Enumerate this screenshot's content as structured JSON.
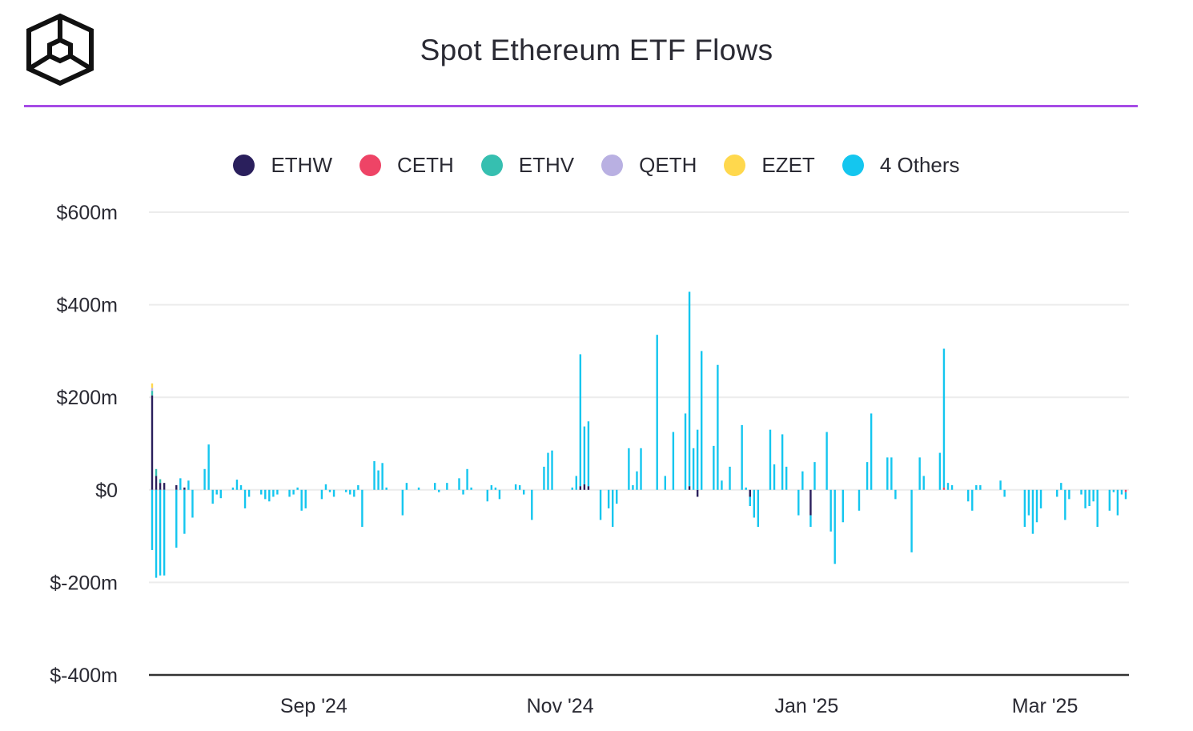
{
  "title": "Spot Ethereum ETF Flows",
  "legend": [
    {
      "name": "ETHW",
      "color": "#2a1f5c"
    },
    {
      "name": "CETH",
      "color": "#ee4466"
    },
    {
      "name": "ETHV",
      "color": "#36bfb0"
    },
    {
      "name": "QETH",
      "color": "#b9b0e2"
    },
    {
      "name": "EZET",
      "color": "#ffd84d"
    },
    {
      "name": "4 Others",
      "color": "#14c6ef"
    }
  ],
  "chart_data": {
    "type": "bar",
    "stacked": true,
    "title": "Spot Ethereum ETF Flows",
    "ylabel": "",
    "xlabel": "",
    "ylim": [
      -400,
      600
    ],
    "y_ticks": [
      "$600m",
      "$400m",
      "$200m",
      "$0",
      "$-200m",
      "$-400m"
    ],
    "y_tick_values": [
      600,
      400,
      200,
      0,
      -200,
      -400
    ],
    "x_ticks": [
      "Sep '24",
      "Nov '24",
      "Jan '25",
      "Mar '25"
    ],
    "x_tick_dates": [
      "2024-09-01",
      "2024-11-01",
      "2025-01-01",
      "2025-03-01"
    ],
    "x_range": [
      "2024-07-23",
      "2025-03-21"
    ],
    "legend_position": "top-center",
    "grid": true,
    "unit": "$m",
    "series_names": [
      "ETHW",
      "CETH",
      "ETHV",
      "QETH",
      "EZET",
      "4 Others"
    ],
    "bars": [
      {
        "date": "2024-07-23",
        "ETHW": 204,
        "ETHV": 10,
        "QETH": 6,
        "EZET": 10,
        "4 Others": -130
      },
      {
        "date": "2024-07-24",
        "ETHW": 30,
        "ETHV": 15,
        "4 Others": -190
      },
      {
        "date": "2024-07-25",
        "ETHW": 15,
        "ETHV": 8,
        "4 Others": -185
      },
      {
        "date": "2024-07-26",
        "ETHW": 15,
        "4 Others": -185
      },
      {
        "date": "2024-07-29",
        "ETHW": 10,
        "4 Others": -125
      },
      {
        "date": "2024-07-30",
        "4 Others": 25
      },
      {
        "date": "2024-07-31",
        "ETHW": 5,
        "4 Others": -95
      },
      {
        "date": "2024-08-01",
        "4 Others": 20
      },
      {
        "date": "2024-08-02",
        "4 Others": -60
      },
      {
        "date": "2024-08-05",
        "4 Others": 45
      },
      {
        "date": "2024-08-06",
        "4 Others": 98
      },
      {
        "date": "2024-08-07",
        "4 Others": -30
      },
      {
        "date": "2024-08-08",
        "4 Others": -10
      },
      {
        "date": "2024-08-09",
        "4 Others": -18
      },
      {
        "date": "2024-08-12",
        "4 Others": 5
      },
      {
        "date": "2024-08-13",
        "4 Others": 22
      },
      {
        "date": "2024-08-14",
        "4 Others": 10
      },
      {
        "date": "2024-08-15",
        "4 Others": -40
      },
      {
        "date": "2024-08-16",
        "4 Others": -15
      },
      {
        "date": "2024-08-19",
        "4 Others": -10
      },
      {
        "date": "2024-08-20",
        "4 Others": -20
      },
      {
        "date": "2024-08-21",
        "4 Others": -25
      },
      {
        "date": "2024-08-22",
        "4 Others": -15
      },
      {
        "date": "2024-08-23",
        "4 Others": -10
      },
      {
        "date": "2024-08-26",
        "4 Others": -15
      },
      {
        "date": "2024-08-27",
        "4 Others": -10
      },
      {
        "date": "2024-08-28",
        "4 Others": 5
      },
      {
        "date": "2024-08-29",
        "4 Others": -45
      },
      {
        "date": "2024-08-30",
        "4 Others": -40
      },
      {
        "date": "2024-09-03",
        "4 Others": -20
      },
      {
        "date": "2024-09-04",
        "4 Others": 12
      },
      {
        "date": "2024-09-05",
        "4 Others": -5
      },
      {
        "date": "2024-09-06",
        "4 Others": -15
      },
      {
        "date": "2024-09-09",
        "4 Others": -5
      },
      {
        "date": "2024-09-10",
        "4 Others": -10
      },
      {
        "date": "2024-09-11",
        "4 Others": -15
      },
      {
        "date": "2024-09-12",
        "4 Others": 10
      },
      {
        "date": "2024-09-13",
        "4 Others": -80
      },
      {
        "date": "2024-09-16",
        "4 Others": 62
      },
      {
        "date": "2024-09-17",
        "4 Others": 42
      },
      {
        "date": "2024-09-18",
        "4 Others": 58
      },
      {
        "date": "2024-09-19",
        "4 Others": 5
      },
      {
        "date": "2024-09-23",
        "4 Others": -55
      },
      {
        "date": "2024-09-24",
        "4 Others": 15
      },
      {
        "date": "2024-09-27",
        "4 Others": 5
      },
      {
        "date": "2024-10-01",
        "4 Others": 15
      },
      {
        "date": "2024-10-02",
        "4 Others": -5
      },
      {
        "date": "2024-10-04",
        "4 Others": 15
      },
      {
        "date": "2024-10-07",
        "4 Others": 25
      },
      {
        "date": "2024-10-08",
        "4 Others": -10
      },
      {
        "date": "2024-10-09",
        "4 Others": 45
      },
      {
        "date": "2024-10-10",
        "4 Others": 5
      },
      {
        "date": "2024-10-14",
        "4 Others": -25
      },
      {
        "date": "2024-10-15",
        "4 Others": 10
      },
      {
        "date": "2024-10-16",
        "4 Others": 5
      },
      {
        "date": "2024-10-17",
        "4 Others": -20
      },
      {
        "date": "2024-10-21",
        "4 Others": 12
      },
      {
        "date": "2024-10-22",
        "4 Others": 10
      },
      {
        "date": "2024-10-23",
        "4 Others": -10
      },
      {
        "date": "2024-10-25",
        "4 Others": -65
      },
      {
        "date": "2024-10-28",
        "4 Others": 50
      },
      {
        "date": "2024-10-29",
        "4 Others": 80
      },
      {
        "date": "2024-10-30",
        "4 Others": 85
      },
      {
        "date": "2024-11-04",
        "4 Others": 5
      },
      {
        "date": "2024-11-05",
        "4 Others": 30
      },
      {
        "date": "2024-11-06",
        "ETHW": 8,
        "4 Others": 285
      },
      {
        "date": "2024-11-07",
        "ETHW": 12,
        "4 Others": 125
      },
      {
        "date": "2024-11-08",
        "ETHW": 8,
        "4 Others": 140
      },
      {
        "date": "2024-11-11",
        "4 Others": -65
      },
      {
        "date": "2024-11-13",
        "4 Others": -40
      },
      {
        "date": "2024-11-14",
        "4 Others": -80
      },
      {
        "date": "2024-11-15",
        "4 Others": -30
      },
      {
        "date": "2024-11-18",
        "4 Others": 90
      },
      {
        "date": "2024-11-19",
        "4 Others": 10
      },
      {
        "date": "2024-11-20",
        "4 Others": 40
      },
      {
        "date": "2024-11-21",
        "4 Others": 90
      },
      {
        "date": "2024-11-25",
        "4 Others": 335
      },
      {
        "date": "2024-11-27",
        "4 Others": 30
      },
      {
        "date": "2024-11-29",
        "4 Others": 125
      },
      {
        "date": "2024-12-02",
        "4 Others": 165
      },
      {
        "date": "2024-12-03",
        "ETHW": 8,
        "4 Others": 420
      },
      {
        "date": "2024-12-04",
        "4 Others": 90
      },
      {
        "date": "2024-12-05",
        "ETHW": -15,
        "4 Others": 130
      },
      {
        "date": "2024-12-06",
        "4 Others": 300
      },
      {
        "date": "2024-12-09",
        "4 Others": 95
      },
      {
        "date": "2024-12-10",
        "4 Others": 270
      },
      {
        "date": "2024-12-11",
        "4 Others": 20
      },
      {
        "date": "2024-12-13",
        "4 Others": 50
      },
      {
        "date": "2024-12-16",
        "4 Others": 140
      },
      {
        "date": "2024-12-17",
        "4 Others": 5
      },
      {
        "date": "2024-12-18",
        "ETHW": -15,
        "4 Others": -20
      },
      {
        "date": "2024-12-19",
        "4 Others": -60
      },
      {
        "date": "2024-12-20",
        "4 Others": -80
      },
      {
        "date": "2024-12-23",
        "4 Others": 130
      },
      {
        "date": "2024-12-24",
        "4 Others": 55
      },
      {
        "date": "2024-12-26",
        "4 Others": 120
      },
      {
        "date": "2024-12-27",
        "4 Others": 50
      },
      {
        "date": "2024-12-30",
        "4 Others": -55
      },
      {
        "date": "2024-12-31",
        "4 Others": 40
      },
      {
        "date": "2025-01-02",
        "ETHW": -55,
        "4 Others": -25
      },
      {
        "date": "2025-01-03",
        "4 Others": 60
      },
      {
        "date": "2025-01-06",
        "4 Others": 125
      },
      {
        "date": "2025-01-07",
        "4 Others": -90
      },
      {
        "date": "2025-01-08",
        "4 Others": -160
      },
      {
        "date": "2025-01-10",
        "4 Others": -70
      },
      {
        "date": "2025-01-14",
        "4 Others": -45
      },
      {
        "date": "2025-01-16",
        "4 Others": 60
      },
      {
        "date": "2025-01-17",
        "4 Others": 165
      },
      {
        "date": "2025-01-21",
        "4 Others": 70
      },
      {
        "date": "2025-01-22",
        "4 Others": 70
      },
      {
        "date": "2025-01-23",
        "4 Others": -20
      },
      {
        "date": "2025-01-27",
        "4 Others": -135
      },
      {
        "date": "2025-01-29",
        "4 Others": 70
      },
      {
        "date": "2025-01-30",
        "4 Others": 30
      },
      {
        "date": "2025-02-03",
        "4 Others": 80
      },
      {
        "date": "2025-02-04",
        "CETH": 5,
        "4 Others": 300
      },
      {
        "date": "2025-02-05",
        "4 Others": 15
      },
      {
        "date": "2025-02-06",
        "4 Others": 10
      },
      {
        "date": "2025-02-10",
        "4 Others": -25
      },
      {
        "date": "2025-02-11",
        "4 Others": -45
      },
      {
        "date": "2025-02-12",
        "4 Others": 10
      },
      {
        "date": "2025-02-13",
        "4 Others": 10
      },
      {
        "date": "2025-02-18",
        "4 Others": 20
      },
      {
        "date": "2025-02-19",
        "4 Others": -15
      },
      {
        "date": "2025-02-24",
        "4 Others": -80
      },
      {
        "date": "2025-02-25",
        "4 Others": -55
      },
      {
        "date": "2025-02-26",
        "4 Others": -95
      },
      {
        "date": "2025-02-27",
        "4 Others": -70
      },
      {
        "date": "2025-02-28",
        "4 Others": -40
      },
      {
        "date": "2025-03-04",
        "4 Others": -15
      },
      {
        "date": "2025-03-05",
        "4 Others": 15
      },
      {
        "date": "2025-03-06",
        "4 Others": -65
      },
      {
        "date": "2025-03-07",
        "4 Others": -20
      },
      {
        "date": "2025-03-10",
        "4 Others": -10
      },
      {
        "date": "2025-03-11",
        "4 Others": -40
      },
      {
        "date": "2025-03-12",
        "4 Others": -35
      },
      {
        "date": "2025-03-13",
        "4 Others": -25
      },
      {
        "date": "2025-03-14",
        "4 Others": -80
      },
      {
        "date": "2025-03-17",
        "4 Others": -45
      },
      {
        "date": "2025-03-18",
        "4 Others": -5
      },
      {
        "date": "2025-03-19",
        "4 Others": -55
      },
      {
        "date": "2025-03-20",
        "4 Others": -10
      },
      {
        "date": "2025-03-21",
        "CETH": -5,
        "4 Others": -15
      }
    ]
  }
}
